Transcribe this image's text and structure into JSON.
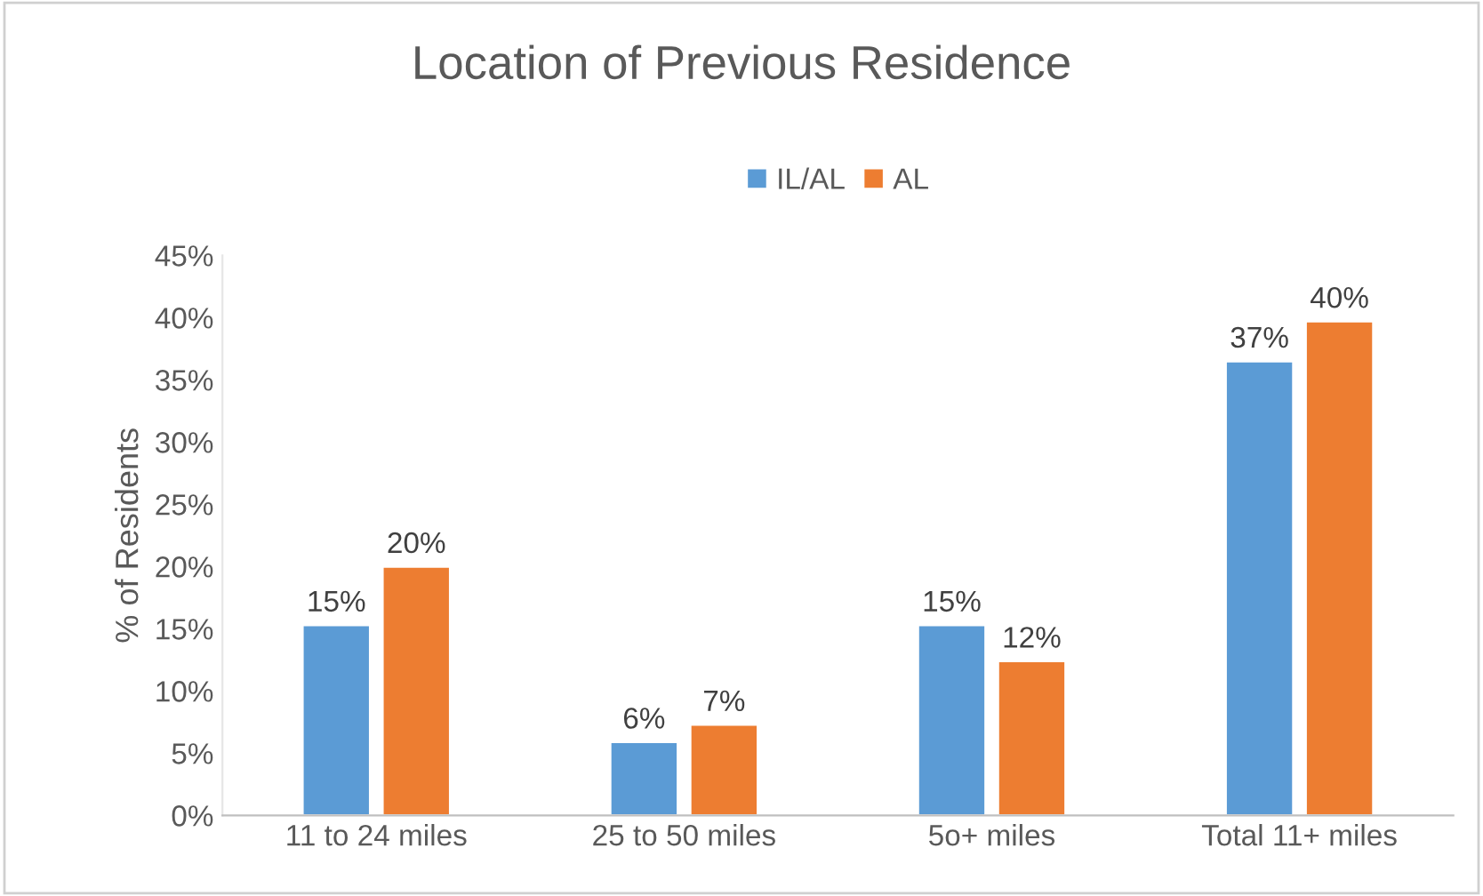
{
  "chart_data": {
    "type": "bar",
    "title": "Location of Previous Residence",
    "ylabel": "% of Residents",
    "categories": [
      "11 to 24 miles",
      "25 to 50 miles",
      "5o+ miles",
      "Total 11+ miles"
    ],
    "series": [
      {
        "name": "IL/AL",
        "color": "#5b9bd5",
        "values": [
          15.3,
          5.9,
          15.3,
          36.5
        ],
        "value_labels": [
          "15%",
          "6%",
          "15%",
          "37%"
        ]
      },
      {
        "name": "AL",
        "color": "#ed7d31",
        "values": [
          20.0,
          7.3,
          12.4,
          39.7
        ],
        "value_labels": [
          "20%",
          "7%",
          "12%",
          "40%"
        ]
      }
    ],
    "ylim": [
      0,
      45
    ],
    "yticks": [
      {
        "value": 0,
        "label": "0%"
      },
      {
        "value": 5,
        "label": "5%"
      },
      {
        "value": 10,
        "label": "10%"
      },
      {
        "value": 15,
        "label": "15%"
      },
      {
        "value": 20,
        "label": "20%"
      },
      {
        "value": 25,
        "label": "25%"
      },
      {
        "value": 30,
        "label": "30%"
      },
      {
        "value": 35,
        "label": "35%"
      },
      {
        "value": 40,
        "label": "40%"
      },
      {
        "value": 45,
        "label": "45%"
      }
    ],
    "legend": "top",
    "grid": false
  }
}
